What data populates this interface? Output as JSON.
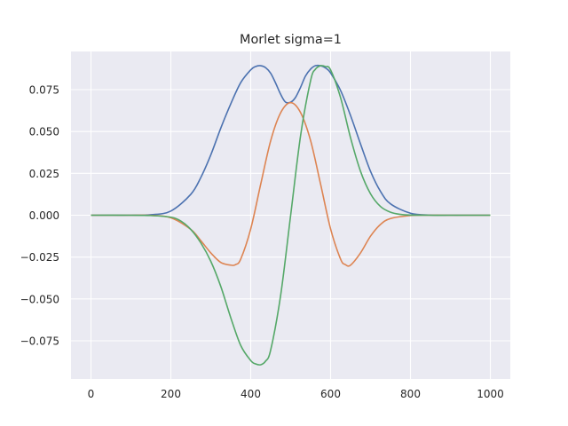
{
  "chart_data": {
    "type": "line",
    "title": "Morlet sigma=1",
    "xlabel": "",
    "ylabel": "",
    "xlim": [
      -50,
      1050
    ],
    "ylim": [
      -0.0978,
      0.0978
    ],
    "grid": true,
    "background": "#eaeaf2",
    "grid_color": "#ffffff",
    "x_ticks": [
      0,
      200,
      400,
      600,
      800,
      1000
    ],
    "x_tick_labels": [
      "0",
      "200",
      "400",
      "600",
      "800",
      "1000"
    ],
    "y_ticks": [
      0.075,
      0.05,
      0.025,
      0.0,
      -0.025,
      -0.05,
      -0.075
    ],
    "y_tick_labels": [
      "0.075",
      "0.050",
      "0.025",
      "0.000",
      "−0.025",
      "−0.050",
      "−0.075"
    ],
    "series": [
      {
        "color": "#4c72b0",
        "x": [
          0,
          50,
          100,
          150,
          200,
          250,
          275,
          300,
          325,
          350,
          375,
          400,
          412,
          425,
          437,
          450,
          462,
          475,
          487,
          500,
          512,
          525,
          537,
          550,
          562,
          575,
          587,
          600,
          625,
          650,
          675,
          700,
          725,
          750,
          800,
          850,
          900,
          950,
          1000
        ],
        "y": [
          0.0,
          0.0,
          0.0,
          0.0003,
          0.0025,
          0.0125,
          0.0225,
          0.036,
          0.052,
          0.0665,
          0.0792,
          0.0868,
          0.0888,
          0.0893,
          0.0882,
          0.0848,
          0.0791,
          0.0722,
          0.0676,
          0.0675,
          0.0703,
          0.0765,
          0.0831,
          0.0873,
          0.0893,
          0.0893,
          0.088,
          0.085,
          0.0745,
          0.0595,
          0.0425,
          0.0262,
          0.0142,
          0.0068,
          0.0012,
          0.0001,
          0.0,
          0.0,
          0.0
        ]
      },
      {
        "color": "#dd8452",
        "x": [
          0,
          100,
          150,
          200,
          250,
          275,
          300,
          325,
          350,
          362,
          375,
          400,
          425,
          450,
          475,
          500,
          525,
          550,
          575,
          600,
          625,
          637,
          650,
          675,
          700,
          725,
          750,
          800,
          850,
          900,
          1000
        ],
        "y": [
          0.0,
          0.0,
          -0.0001,
          -0.0015,
          -0.0085,
          -0.0152,
          -0.0225,
          -0.0282,
          -0.0298,
          -0.0295,
          -0.0262,
          -0.0082,
          0.0185,
          0.0445,
          0.0612,
          0.0672,
          0.0612,
          0.0445,
          0.0185,
          -0.0082,
          -0.0262,
          -0.0295,
          -0.0298,
          -0.0225,
          -0.0125,
          -0.0055,
          -0.002,
          -0.0002,
          0.0,
          0.0,
          0.0
        ]
      },
      {
        "color": "#55a868",
        "x": [
          0,
          100,
          150,
          200,
          225,
          250,
          275,
          300,
          325,
          350,
          375,
          400,
          412,
          425,
          437,
          450,
          475,
          500,
          525,
          550,
          562,
          575,
          587,
          600,
          625,
          650,
          675,
          700,
          725,
          750,
          775,
          800,
          850,
          900,
          1000
        ],
        "y": [
          0.0,
          0.0,
          -0.0002,
          -0.0012,
          -0.0035,
          -0.0085,
          -0.0165,
          -0.0275,
          -0.0425,
          -0.0612,
          -0.0778,
          -0.0868,
          -0.0888,
          -0.0893,
          -0.0872,
          -0.0805,
          -0.0478,
          0.0,
          0.0478,
          0.0805,
          0.0872,
          0.0893,
          0.0888,
          0.0868,
          0.0702,
          0.0462,
          0.0262,
          0.0128,
          0.0052,
          0.0018,
          0.0005,
          0.0001,
          0.0,
          0.0,
          0.0
        ]
      }
    ]
  }
}
